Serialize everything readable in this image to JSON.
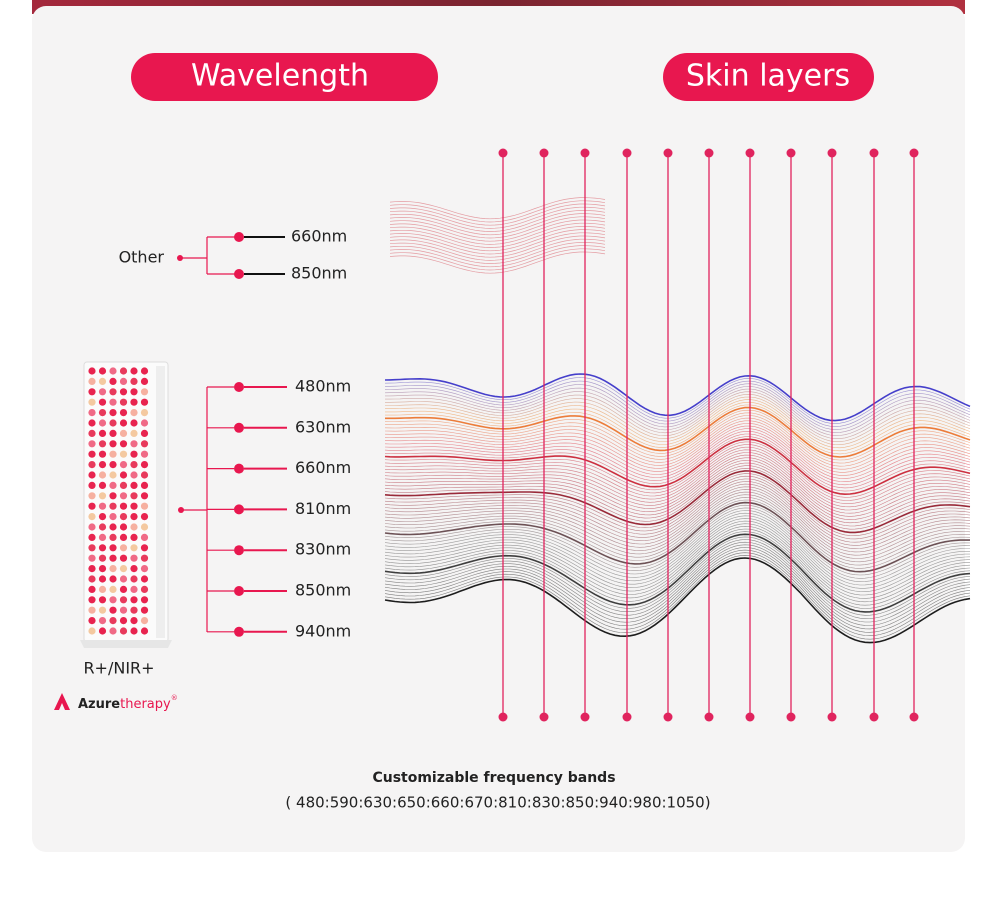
{
  "header": {
    "wavelength_button": "Wavelength",
    "skin_layers_button": "Skin layers"
  },
  "other_group": {
    "label": "Other",
    "wavelengths": [
      "660nm",
      "850nm"
    ]
  },
  "device_group": {
    "label": "R+/NIR+",
    "wavelengths": [
      "480nm",
      "630nm",
      "660nm",
      "810nm",
      "830nm",
      "850nm",
      "940nm"
    ]
  },
  "brand": {
    "name_first": "Azure",
    "name_second": "therapy",
    "mark": "®"
  },
  "footer": {
    "title": "Customizable frequency bands",
    "bands": "( 480:590:630:650:660:670:810:830:850:940:980:1050)"
  }
}
